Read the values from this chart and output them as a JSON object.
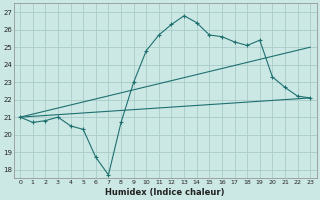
{
  "xlabel": "Humidex (Indice chaleur)",
  "xlim": [
    -0.5,
    23.5
  ],
  "ylim": [
    17.5,
    27.5
  ],
  "yticks": [
    18,
    19,
    20,
    21,
    22,
    23,
    24,
    25,
    26,
    27
  ],
  "xticks": [
    0,
    1,
    2,
    3,
    4,
    5,
    6,
    7,
    8,
    9,
    10,
    11,
    12,
    13,
    14,
    15,
    16,
    17,
    18,
    19,
    20,
    21,
    22,
    23
  ],
  "background_color": "#cce8e4",
  "grid_color": "#a8ccc8",
  "line_color": "#1e7070",
  "lines": [
    {
      "x": [
        0,
        1,
        2,
        3,
        4,
        5,
        6,
        7,
        8,
        9,
        10,
        11,
        12,
        13,
        14,
        15,
        16,
        17,
        18,
        19,
        20,
        21,
        22,
        23
      ],
      "y": [
        21,
        20.7,
        20.8,
        21,
        20.5,
        20.3,
        18.7,
        17.7,
        20.7,
        23.0,
        24.8,
        25.7,
        26.3,
        26.8,
        26.4,
        25.7,
        25.6,
        25.3,
        25.1,
        25.4,
        23.3,
        22.7,
        22.2,
        22.1
      ],
      "has_markers": true
    },
    {
      "x": [
        0,
        23
      ],
      "y": [
        21,
        25.0
      ],
      "has_markers": false
    },
    {
      "x": [
        0,
        23
      ],
      "y": [
        21,
        22.1
      ],
      "has_markers": false
    }
  ]
}
